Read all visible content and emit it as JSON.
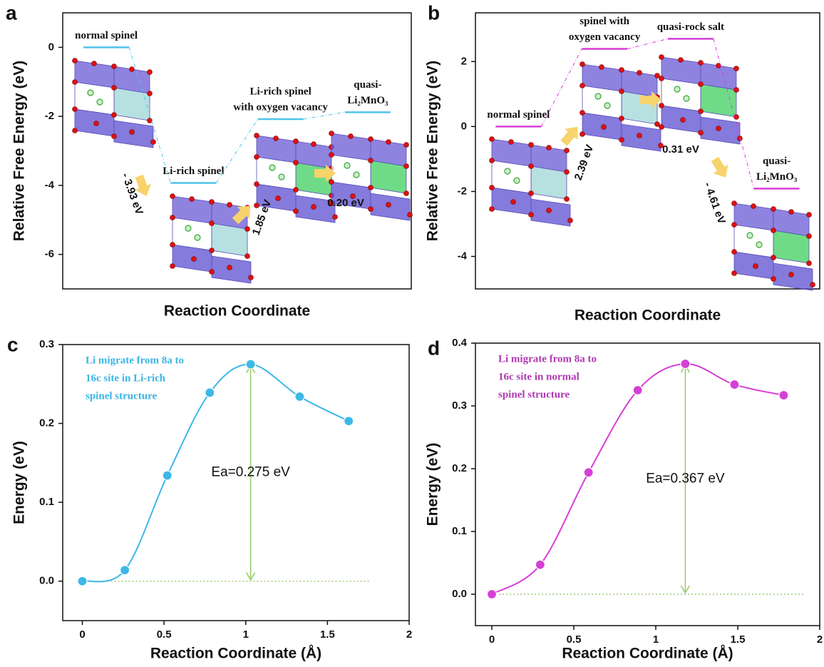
{
  "chart_data": [
    {
      "type": "energy-level",
      "panel_label": "a",
      "ylabel": "Relative Free Energy (eV)",
      "xlabel": "Reaction Coordinate",
      "categories": [
        [
          "normal spinel"
        ],
        [
          "Li-rich spinel"
        ],
        [
          "Li-rich spinel",
          "with oxygen vacancy"
        ],
        [
          "quasi-",
          "Li₂MnO₃"
        ]
      ],
      "values": [
        0,
        -3.93,
        -2.08,
        -1.88
      ],
      "color": "#4fc3ea",
      "transitions": [
        "- 3.93 eV",
        "1.85 eV",
        "0.20 eV"
      ],
      "ylim": [
        -7,
        1
      ],
      "yticks": [
        -6,
        -4,
        -2,
        0
      ]
    },
    {
      "type": "energy-level",
      "panel_label": "b",
      "ylabel": "Relative Free Energy (eV)",
      "xlabel": "Reaction Coordinate",
      "categories": [
        [
          "normal spinel"
        ],
        [
          "spinel with",
          "oxygen vacancy"
        ],
        [
          "quasi-rock salt"
        ],
        [
          "quasi-",
          "Li₂MnO₃"
        ]
      ],
      "values": [
        0,
        2.39,
        2.7,
        -1.91
      ],
      "color": "#d63fd6",
      "transitions": [
        "2.39 eV",
        "0.31 eV",
        "- 4.61 eV"
      ],
      "ylim": [
        -5,
        3.5
      ],
      "yticks": [
        -4,
        -2,
        0,
        2
      ]
    },
    {
      "type": "line",
      "panel_label": "c",
      "ylabel": "Energy (eV)",
      "xlabel": "Reaction Coordinate (Å)",
      "annotation": [
        "Li migrate from 8a to",
        "16c site in Li-rich",
        "spinel structure"
      ],
      "annotation_color": "#3bb5e5",
      "ea_label": "Ea=0.275 eV",
      "x": [
        0,
        0.26,
        0.52,
        0.78,
        1.03,
        1.33,
        1.63
      ],
      "values": [
        0,
        0.014,
        0.134,
        0.239,
        0.275,
        0.234,
        0.203
      ],
      "color": "#3db8e6",
      "xlim": [
        -0.12,
        2
      ],
      "xticks": [
        0,
        0.5,
        1,
        1.5,
        2
      ],
      "ylim": [
        -0.05,
        0.3
      ],
      "yticks": [
        {
          "value": 0,
          "label": "0.0"
        },
        {
          "value": 0.1,
          "label": "0.1"
        },
        {
          "value": 0.2,
          "label": "0.2"
        },
        {
          "value": 0.3,
          "label": "0.3"
        }
      ]
    },
    {
      "type": "line",
      "panel_label": "d",
      "ylabel": "Energy (eV)",
      "xlabel": "Reaction Coordinate (Å)",
      "annotation": [
        "Li migrate from 8a to",
        "16c site in normal",
        "spinel structure"
      ],
      "annotation_color": "#b03ab0",
      "ea_label": "Ea=0.367 eV",
      "x": [
        0,
        0.295,
        0.59,
        0.89,
        1.18,
        1.48,
        1.78
      ],
      "values": [
        0,
        0.047,
        0.194,
        0.325,
        0.367,
        0.334,
        0.317
      ],
      "color": "#d63fd6",
      "xlim": [
        -0.1,
        2
      ],
      "xticks": [
        0,
        0.5,
        1,
        1.5,
        2
      ],
      "ylim": [
        -0.05,
        0.4
      ],
      "yticks": [
        {
          "value": 0,
          "label": "0.0"
        },
        {
          "value": 0.1,
          "label": "0.1"
        },
        {
          "value": 0.2,
          "label": "0.2"
        },
        {
          "value": 0.3,
          "label": "0.3"
        },
        {
          "value": 0.4,
          "label": "0.4"
        }
      ]
    }
  ]
}
